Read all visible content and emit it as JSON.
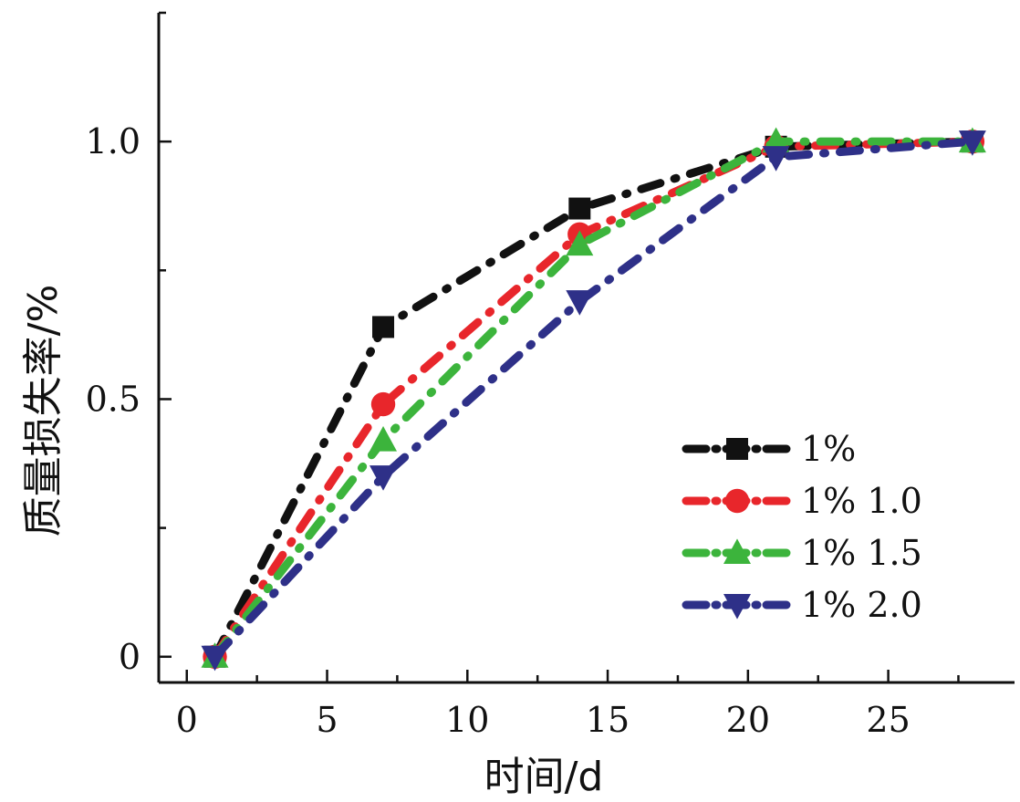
{
  "chart_data": {
    "type": "line",
    "xlabel": "时间/d",
    "ylabel": "质量损失率/%",
    "xlim": [
      -1,
      29.5
    ],
    "ylim": [
      -0.05,
      1.25
    ],
    "xticks": [
      0,
      5,
      10,
      15,
      20,
      25
    ],
    "xtick_labels": [
      "0",
      "5",
      "10",
      "15",
      "20",
      "25"
    ],
    "yticks": [
      0,
      0.5,
      1.0
    ],
    "ytick_labels": [
      "0",
      "0.5",
      "1.0"
    ],
    "grid": false,
    "legend_position": "lower-right",
    "x": [
      1,
      7,
      14,
      21,
      28
    ],
    "series": [
      {
        "name": "1%",
        "values": [
          0,
          0.64,
          0.87,
          0.99,
          1.0
        ],
        "color": "#111111",
        "marker": "square"
      },
      {
        "name": "1% 1.0",
        "values": [
          0,
          0.49,
          0.82,
          0.99,
          1.0
        ],
        "color": "#e8262b",
        "marker": "circle"
      },
      {
        "name": "1% 1.5",
        "values": [
          0,
          0.42,
          0.8,
          1.0,
          1.0
        ],
        "color": "#3cb43c",
        "marker": "triangle-up"
      },
      {
        "name": "1% 2.0",
        "values": [
          0,
          0.35,
          0.69,
          0.97,
          1.0
        ],
        "color": "#2e3088",
        "marker": "triangle-down"
      }
    ]
  }
}
